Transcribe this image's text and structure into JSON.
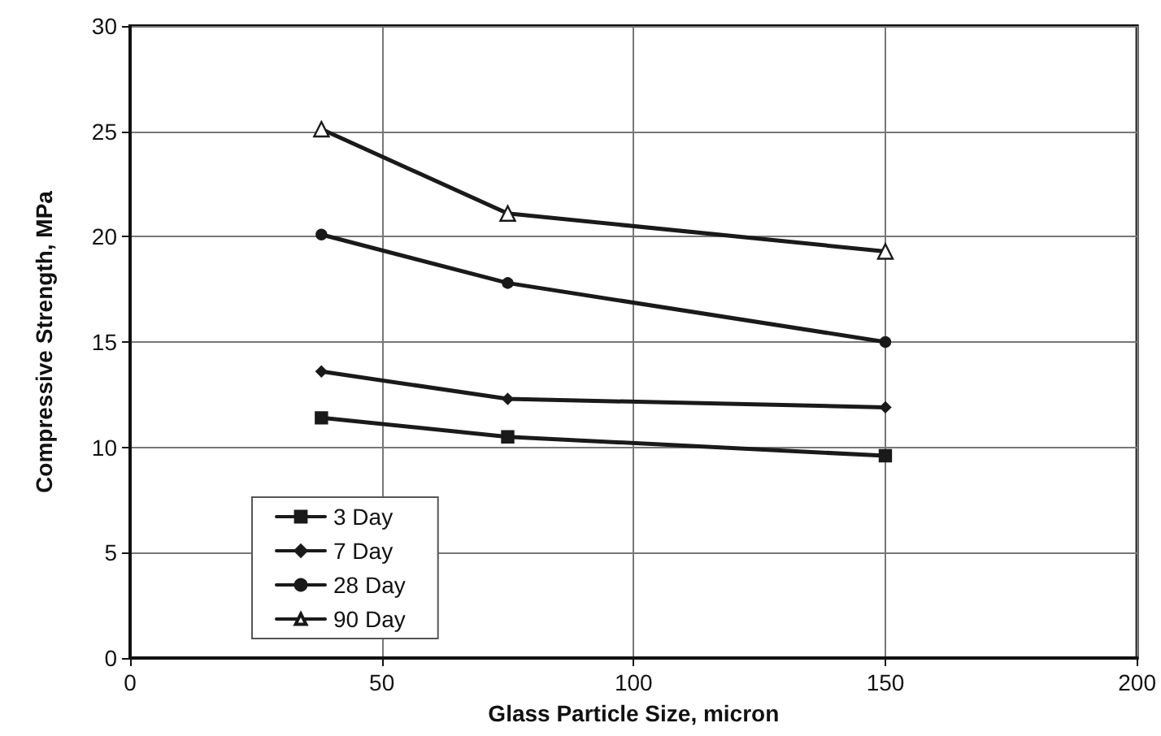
{
  "chart_data": {
    "type": "line",
    "xlabel": "Glass Particle Size, micron",
    "ylabel": "Compressive Strength, MPa",
    "x": [
      38,
      75,
      150
    ],
    "series": [
      {
        "name": "3 Day",
        "color": "#1a1a1a",
        "marker": "square",
        "values": [
          11.4,
          10.5,
          9.6
        ]
      },
      {
        "name": "7 Day",
        "color": "#1a1a1a",
        "marker": "diamond",
        "values": [
          13.6,
          12.3,
          11.9
        ]
      },
      {
        "name": "28 Day",
        "color": "#1a1a1a",
        "marker": "circle",
        "values": [
          20.1,
          17.8,
          15.0
        ]
      },
      {
        "name": "90 Day",
        "color": "#1a1a1a",
        "marker": "triangle",
        "values": [
          25.1,
          21.1,
          19.3
        ]
      }
    ],
    "xlim": [
      0,
      200
    ],
    "xticks": [
      0,
      50,
      100,
      150,
      200
    ],
    "ylim": [
      0,
      30
    ],
    "yticks": [
      0,
      5,
      10,
      15,
      20,
      25,
      30
    ],
    "grid": true,
    "legend": "bottom left",
    "line_style": "solid"
  }
}
